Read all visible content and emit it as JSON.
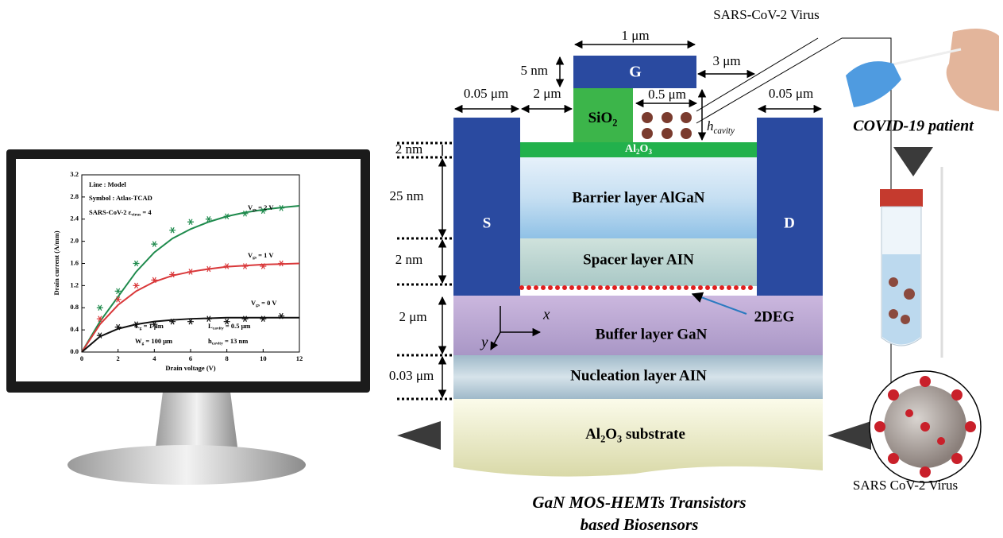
{
  "chart_data": {
    "type": "line",
    "x_label": "Drain voltage  (V)",
    "y_label": "Drain current  (A/mm)",
    "xlim": [
      0,
      12
    ],
    "ylim": [
      0,
      3.2
    ],
    "xticks": [
      0,
      2,
      4,
      6,
      8,
      10,
      12
    ],
    "yticks": [
      {
        "value": 0,
        "label": "0.0"
      },
      0.4,
      0.8,
      1.2,
      1.6,
      {
        "value": 2,
        "label": "2.0"
      },
      2.4,
      2.8,
      3.2
    ],
    "x": [
      0,
      1,
      2,
      3,
      4,
      5,
      6,
      7,
      8,
      9,
      10,
      11,
      12
    ],
    "symbol_x": [
      1,
      2,
      3,
      4,
      5,
      6,
      7,
      8,
      9,
      10,
      11
    ],
    "series": [
      {
        "name": [
          "V",
          "gs",
          " = 2 V"
        ],
        "color": "#1e8a4c",
        "values": [
          0,
          0.55,
          1.0,
          1.45,
          1.8,
          2.05,
          2.22,
          2.35,
          2.45,
          2.52,
          2.57,
          2.61,
          2.64
        ],
        "symbol_values": [
          0.8,
          1.1,
          1.6,
          1.95,
          2.2,
          2.35,
          2.4,
          2.45,
          2.5,
          2.55,
          2.6
        ]
      },
      {
        "name": [
          "V",
          "gs",
          " = 1 V"
        ],
        "color": "#d9383a",
        "values": [
          0,
          0.5,
          0.85,
          1.1,
          1.27,
          1.38,
          1.45,
          1.5,
          1.54,
          1.56,
          1.58,
          1.59,
          1.6
        ],
        "symbol_values": [
          0.6,
          0.95,
          1.2,
          1.3,
          1.4,
          1.45,
          1.5,
          1.55,
          1.55,
          1.55,
          1.6
        ]
      },
      {
        "name": [
          "V",
          "gs",
          " = 0 V"
        ],
        "color": "#111111",
        "values": [
          0,
          0.28,
          0.42,
          0.5,
          0.55,
          0.58,
          0.6,
          0.61,
          0.62,
          0.62,
          0.62,
          0.62,
          0.62
        ],
        "symbol_values": [
          0.3,
          0.45,
          0.5,
          0.5,
          0.55,
          0.55,
          0.6,
          0.55,
          0.6,
          0.6,
          0.65
        ]
      }
    ],
    "annotations": [
      [
        "Line : Model"
      ],
      [
        "Symbol : Atlas-TCAD"
      ],
      [
        "SARS-CoV-2   ε",
        "virus",
        " = 4"
      ],
      [
        "L",
        "g",
        " = 1 μm"
      ],
      [
        "W",
        "g",
        " = 100 μm"
      ],
      [
        "L",
        "cavity",
        " = 0.5 μm"
      ],
      [
        "h",
        "cavity",
        " = 13 nm"
      ]
    ]
  },
  "diagram": {
    "gate_width": "1 μm",
    "oxide_thickness": "5 nm",
    "gate_drain": "3 μm",
    "gate": "G",
    "source_width": "0.05 μm",
    "source_gate": "2 μm",
    "oxide": [
      "SiO",
      "2"
    ],
    "cavity_length": "0.5 μm",
    "cavity_height": [
      "h",
      "cavity"
    ],
    "drain_width": "0.05 μm",
    "al2o3": [
      "Al",
      "2",
      "O",
      "3"
    ],
    "t_al2o3": "2 nm",
    "t_barrier": "25 nm",
    "t_spacer": "2 nm",
    "t_buffer": "2 μm",
    "t_nucleation": "0.03 μm",
    "source": "S",
    "drain": "D",
    "barrier": "Barrier layer AlGaN",
    "spacer": "Spacer layer AIN",
    "twodeg": "2DEG",
    "axis_x": "x",
    "axis_y": "y",
    "buffer": "Buffer layer GaN",
    "nucleation": "Nucleation layer AIN",
    "substrate": [
      "Al",
      "2",
      "O",
      "3",
      " substrate"
    ],
    "virus_label_top": "SARS-CoV-2 Virus",
    "patient": "COVID-19 patient",
    "virus_label_bottom": "SARS CoV-2 Virus",
    "caption": [
      "GaN MOS-HEMTs Transistors",
      "based Biosensors"
    ]
  }
}
